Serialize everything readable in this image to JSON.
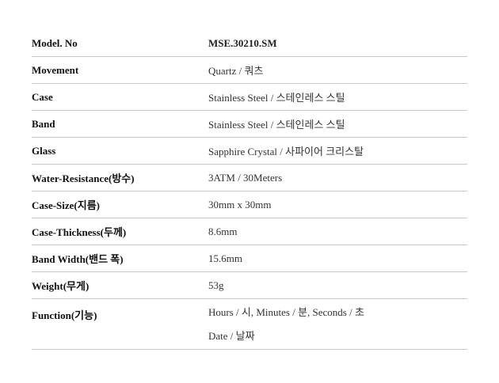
{
  "specs": [
    {
      "label": "Model. No",
      "value": "MSE.30210.SM"
    },
    {
      "label": "Movement",
      "value": "Quartz / 쿼츠"
    },
    {
      "label": "Case",
      "value": "Stainless Steel / 스테인레스 스틸"
    },
    {
      "label": "Band",
      "value": "Stainless Steel / 스테인레스 스틸"
    },
    {
      "label": "Glass",
      "value": "Sapphire Crystal / 사파이어 크리스탈"
    },
    {
      "label": "Water-Resistance(방수)",
      "value": "3ATM / 30Meters"
    },
    {
      "label": "Case-Size(지름)",
      "value": "30mm x 30mm"
    },
    {
      "label": "Case-Thickness(두께)",
      "value": "8.6mm"
    },
    {
      "label": "Band Width(밴드 폭)",
      "value": "15.6mm"
    },
    {
      "label": "Weight(무게)",
      "value": "53g"
    },
    {
      "label": "Function(기능)",
      "value": "Hours / 시, Minutes / 분, Seconds / 초",
      "value2": "Date / 날짜"
    }
  ]
}
